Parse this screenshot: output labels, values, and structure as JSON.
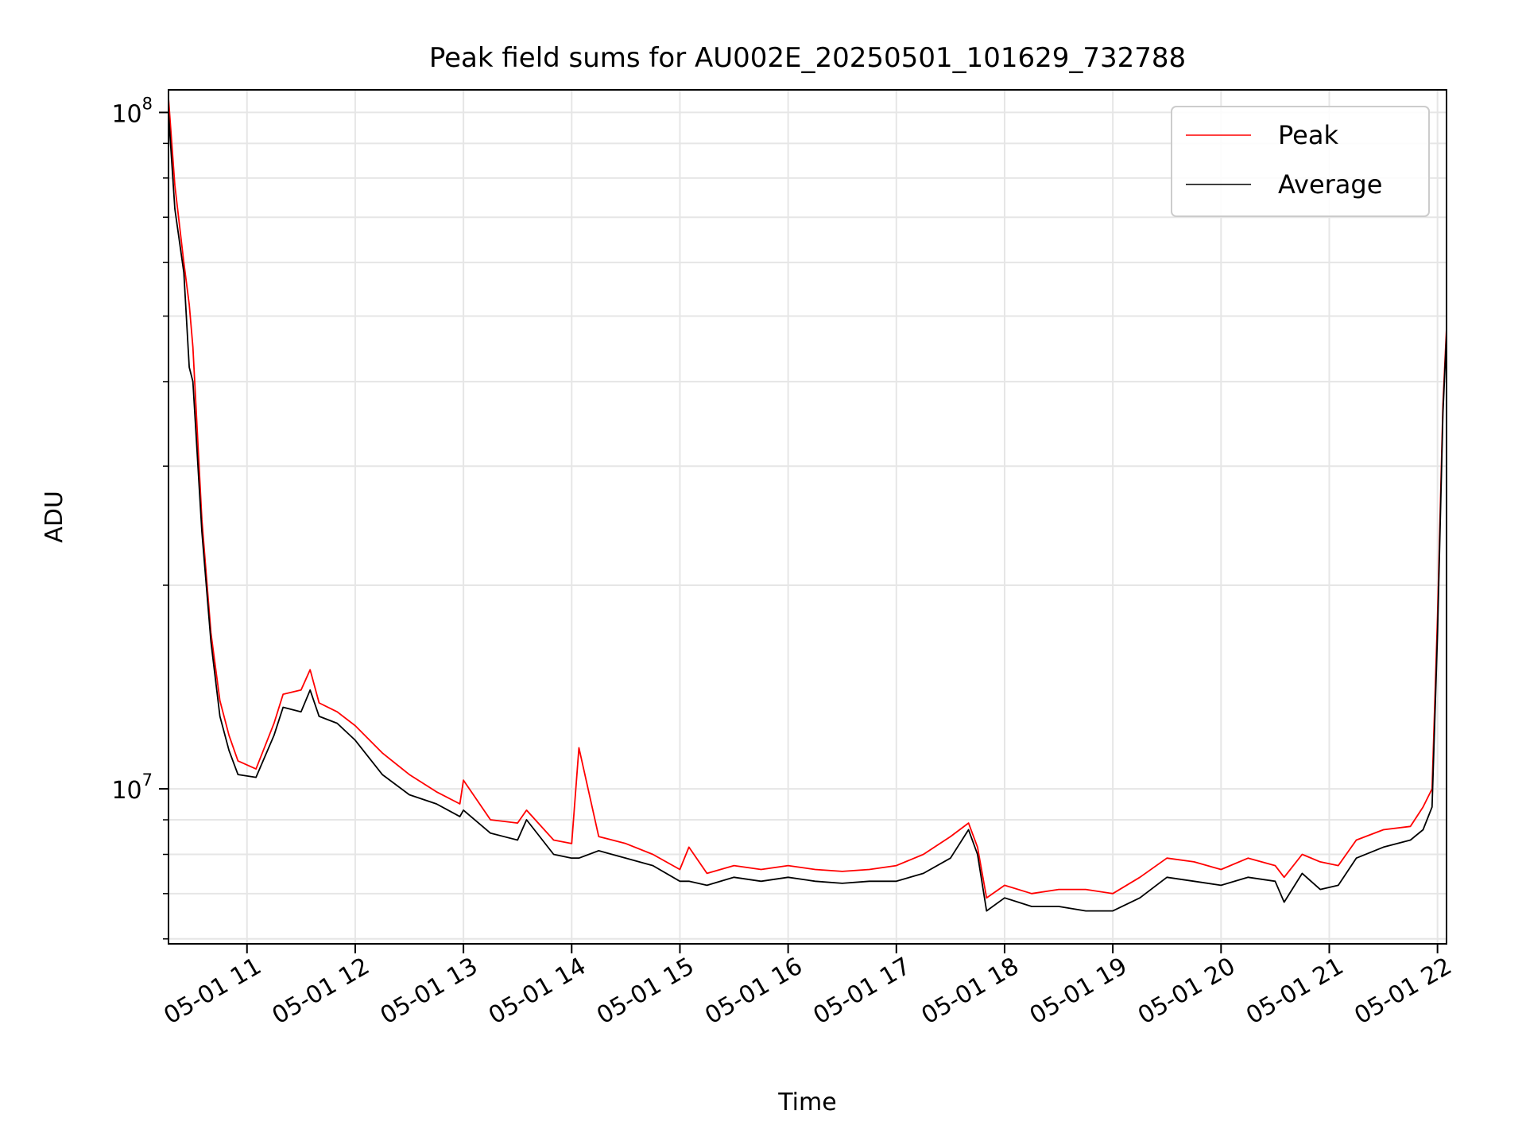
{
  "chart_data": {
    "type": "line",
    "title": "Peak field sums for AU002E_20250501_101629_732788",
    "xlabel": "Time",
    "ylabel": "ADU",
    "y_scale": "log",
    "ylim": [
      5900000,
      108000000
    ],
    "xlim": [
      "2025-05-01T10:16:29",
      "2025-05-01T22:05:00"
    ],
    "x_ticks": [
      {
        "t": "2025-05-01T11:00:00",
        "label": "05-01 11"
      },
      {
        "t": "2025-05-01T12:00:00",
        "label": "05-01 12"
      },
      {
        "t": "2025-05-01T13:00:00",
        "label": "05-01 13"
      },
      {
        "t": "2025-05-01T14:00:00",
        "label": "05-01 14"
      },
      {
        "t": "2025-05-01T15:00:00",
        "label": "05-01 15"
      },
      {
        "t": "2025-05-01T16:00:00",
        "label": "05-01 16"
      },
      {
        "t": "2025-05-01T17:00:00",
        "label": "05-01 17"
      },
      {
        "t": "2025-05-01T18:00:00",
        "label": "05-01 18"
      },
      {
        "t": "2025-05-01T19:00:00",
        "label": "05-01 19"
      },
      {
        "t": "2025-05-01T20:00:00",
        "label": "05-01 20"
      },
      {
        "t": "2025-05-01T21:00:00",
        "label": "05-01 21"
      },
      {
        "t": "2025-05-01T22:00:00",
        "label": "05-01 22"
      }
    ],
    "y_major_ticks": [
      {
        "v": 10000000,
        "base": "10",
        "exp": "7"
      },
      {
        "v": 100000000,
        "base": "10",
        "exp": "8"
      }
    ],
    "y_minor_ticks": [
      6000000,
      7000000,
      8000000,
      9000000,
      20000000,
      30000000,
      40000000,
      50000000,
      60000000,
      70000000,
      80000000,
      90000000
    ],
    "grid": true,
    "legend_position": "top-right",
    "series": [
      {
        "name": "Peak",
        "color": "#ff0000",
        "x": [
          "2025-05-01T10:16:29",
          "2025-05-01T10:20:00",
          "2025-05-01T10:25:00",
          "2025-05-01T10:28:00",
          "2025-05-01T10:30:00",
          "2025-05-01T10:35:00",
          "2025-05-01T10:40:00",
          "2025-05-01T10:45:00",
          "2025-05-01T10:50:00",
          "2025-05-01T10:55:00",
          "2025-05-01T11:05:00",
          "2025-05-01T11:15:00",
          "2025-05-01T11:20:00",
          "2025-05-01T11:30:00",
          "2025-05-01T11:35:00",
          "2025-05-01T11:40:00",
          "2025-05-01T11:50:00",
          "2025-05-01T12:00:00",
          "2025-05-01T12:15:00",
          "2025-05-01T12:30:00",
          "2025-05-01T12:45:00",
          "2025-05-01T12:58:00",
          "2025-05-01T13:00:00",
          "2025-05-01T13:15:00",
          "2025-05-01T13:30:00",
          "2025-05-01T13:35:00",
          "2025-05-01T13:50:00",
          "2025-05-01T14:00:00",
          "2025-05-01T14:04:00",
          "2025-05-01T14:15:00",
          "2025-05-01T14:30:00",
          "2025-05-01T14:45:00",
          "2025-05-01T15:00:00",
          "2025-05-01T15:05:00",
          "2025-05-01T15:15:00",
          "2025-05-01T15:30:00",
          "2025-05-01T15:45:00",
          "2025-05-01T16:00:00",
          "2025-05-01T16:15:00",
          "2025-05-01T16:30:00",
          "2025-05-01T16:45:00",
          "2025-05-01T17:00:00",
          "2025-05-01T17:15:00",
          "2025-05-01T17:30:00",
          "2025-05-01T17:40:00",
          "2025-05-01T17:45:00",
          "2025-05-01T17:50:00",
          "2025-05-01T18:00:00",
          "2025-05-01T18:15:00",
          "2025-05-01T18:30:00",
          "2025-05-01T18:45:00",
          "2025-05-01T19:00:00",
          "2025-05-01T19:15:00",
          "2025-05-01T19:30:00",
          "2025-05-01T19:45:00",
          "2025-05-01T20:00:00",
          "2025-05-01T20:15:00",
          "2025-05-01T20:30:00",
          "2025-05-01T20:35:00",
          "2025-05-01T20:45:00",
          "2025-05-01T20:55:00",
          "2025-05-01T21:05:00",
          "2025-05-01T21:15:00",
          "2025-05-01T21:30:00",
          "2025-05-01T21:45:00",
          "2025-05-01T21:52:00",
          "2025-05-01T21:57:00",
          "2025-05-01T22:00:00",
          "2025-05-01T22:03:00",
          "2025-05-01T22:05:00"
        ],
        "y": [
          105000000,
          78000000,
          60000000,
          52000000,
          45000000,
          25000000,
          17000000,
          13500000,
          12000000,
          11000000,
          10700000,
          12500000,
          13800000,
          14000000,
          15000000,
          13400000,
          13000000,
          12400000,
          11300000,
          10500000,
          9900000,
          9500000,
          10300000,
          9000000,
          8900000,
          9300000,
          8400000,
          8300000,
          11500000,
          8500000,
          8300000,
          8000000,
          7600000,
          8200000,
          7500000,
          7700000,
          7600000,
          7700000,
          7600000,
          7550000,
          7600000,
          7700000,
          8000000,
          8500000,
          8900000,
          8200000,
          6900000,
          7200000,
          7000000,
          7100000,
          7100000,
          7000000,
          7400000,
          7900000,
          7800000,
          7600000,
          7900000,
          7700000,
          7400000,
          8000000,
          7800000,
          7700000,
          8400000,
          8700000,
          8800000,
          9400000,
          10000000,
          18000000,
          37000000,
          48000000
        ]
      },
      {
        "name": "Average",
        "color": "#000000",
        "x": [
          "2025-05-01T10:16:29",
          "2025-05-01T10:20:00",
          "2025-05-01T10:25:00",
          "2025-05-01T10:28:00",
          "2025-05-01T10:30:00",
          "2025-05-01T10:35:00",
          "2025-05-01T10:40:00",
          "2025-05-01T10:45:00",
          "2025-05-01T10:50:00",
          "2025-05-01T10:55:00",
          "2025-05-01T11:05:00",
          "2025-05-01T11:15:00",
          "2025-05-01T11:20:00",
          "2025-05-01T11:30:00",
          "2025-05-01T11:35:00",
          "2025-05-01T11:40:00",
          "2025-05-01T11:50:00",
          "2025-05-01T12:00:00",
          "2025-05-01T12:15:00",
          "2025-05-01T12:30:00",
          "2025-05-01T12:45:00",
          "2025-05-01T12:58:00",
          "2025-05-01T13:00:00",
          "2025-05-01T13:15:00",
          "2025-05-01T13:30:00",
          "2025-05-01T13:35:00",
          "2025-05-01T13:50:00",
          "2025-05-01T14:00:00",
          "2025-05-01T14:04:00",
          "2025-05-01T14:15:00",
          "2025-05-01T14:30:00",
          "2025-05-01T14:45:00",
          "2025-05-01T15:00:00",
          "2025-05-01T15:05:00",
          "2025-05-01T15:15:00",
          "2025-05-01T15:30:00",
          "2025-05-01T15:45:00",
          "2025-05-01T16:00:00",
          "2025-05-01T16:15:00",
          "2025-05-01T16:30:00",
          "2025-05-01T16:45:00",
          "2025-05-01T17:00:00",
          "2025-05-01T17:15:00",
          "2025-05-01T17:30:00",
          "2025-05-01T17:40:00",
          "2025-05-01T17:45:00",
          "2025-05-01T17:50:00",
          "2025-05-01T18:00:00",
          "2025-05-01T18:15:00",
          "2025-05-01T18:30:00",
          "2025-05-01T18:45:00",
          "2025-05-01T19:00:00",
          "2025-05-01T19:15:00",
          "2025-05-01T19:30:00",
          "2025-05-01T19:45:00",
          "2025-05-01T20:00:00",
          "2025-05-01T20:15:00",
          "2025-05-01T20:30:00",
          "2025-05-01T20:35:00",
          "2025-05-01T20:45:00",
          "2025-05-01T20:55:00",
          "2025-05-01T21:05:00",
          "2025-05-01T21:15:00",
          "2025-05-01T21:30:00",
          "2025-05-01T21:45:00",
          "2025-05-01T21:52:00",
          "2025-05-01T21:57:00",
          "2025-05-01T22:00:00",
          "2025-05-01T22:03:00",
          "2025-05-01T22:05:00"
        ],
        "y": [
          100000000,
          72000000,
          58000000,
          42000000,
          40000000,
          24000000,
          16500000,
          12800000,
          11400000,
          10500000,
          10400000,
          12000000,
          13200000,
          13000000,
          14000000,
          12800000,
          12500000,
          11800000,
          10500000,
          9800000,
          9500000,
          9100000,
          9300000,
          8600000,
          8400000,
          9000000,
          8000000,
          7900000,
          7900000,
          8100000,
          7900000,
          7700000,
          7300000,
          7300000,
          7200000,
          7400000,
          7300000,
          7400000,
          7300000,
          7250000,
          7300000,
          7300000,
          7500000,
          7900000,
          8700000,
          8000000,
          6600000,
          6900000,
          6700000,
          6700000,
          6600000,
          6600000,
          6900000,
          7400000,
          7300000,
          7200000,
          7400000,
          7300000,
          6800000,
          7500000,
          7100000,
          7200000,
          7900000,
          8200000,
          8400000,
          8700000,
          9400000,
          17000000,
          36000000,
          47000000
        ]
      }
    ]
  }
}
